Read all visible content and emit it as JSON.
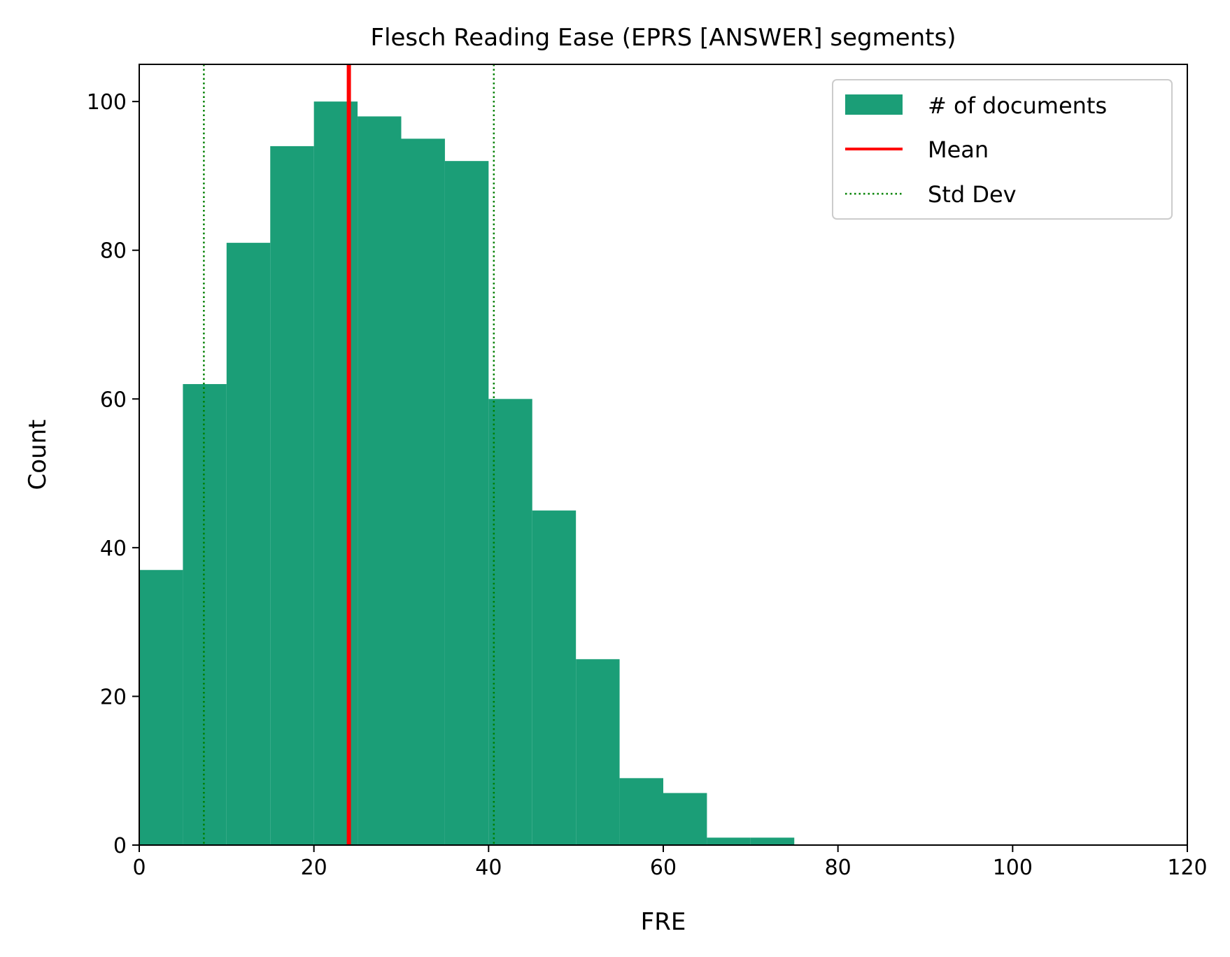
{
  "chart_data": {
    "type": "bar",
    "title": "Flesch Reading Ease (EPRS [ANSWER] segments)",
    "xlabel": "FRE",
    "ylabel": "Count",
    "xlim": [
      0,
      120
    ],
    "ylim": [
      0,
      105
    ],
    "xticks": [
      0,
      20,
      40,
      60,
      80,
      100,
      120
    ],
    "yticks": [
      0,
      20,
      40,
      60,
      80,
      100
    ],
    "xtick_labels": [
      "0",
      "20",
      "40",
      "60",
      "80",
      "100",
      "120"
    ],
    "ytick_labels": [
      "0",
      "20",
      "40",
      "60",
      "80",
      "100"
    ],
    "bin_edges": [
      0,
      5,
      10,
      15,
      20,
      25,
      30,
      35,
      40,
      45,
      50,
      55,
      60,
      65,
      70,
      75
    ],
    "values": [
      37,
      62,
      81,
      94,
      100,
      98,
      95,
      92,
      60,
      45,
      25,
      9,
      7,
      1,
      1
    ],
    "mean": 24,
    "std_dev_lines": [
      7.4,
      40.6
    ],
    "grid": false,
    "legend_position": "top-right",
    "legend": [
      {
        "label": "# of documents",
        "kind": "patch"
      },
      {
        "label": "Mean",
        "kind": "solid-line"
      },
      {
        "label": "Std Dev",
        "kind": "dotted-line"
      }
    ],
    "colors": {
      "bars": "#1b9e77",
      "mean": "#ff0000",
      "std_dev": "#008000"
    }
  }
}
